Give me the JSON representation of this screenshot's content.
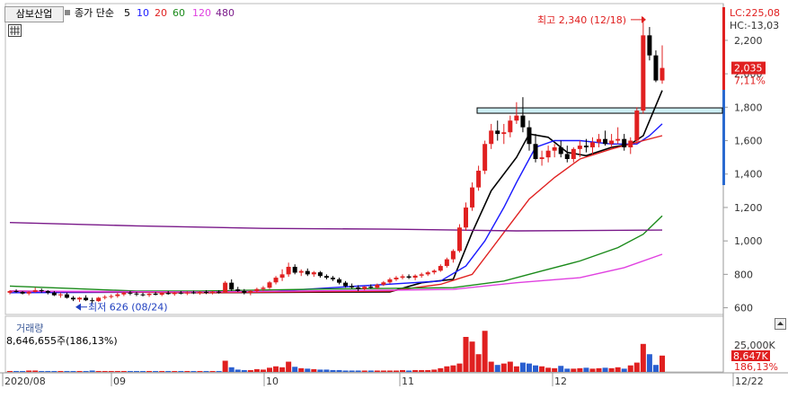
{
  "header": {
    "stock_name": "삼보산업",
    "ma_title": "종가 단순",
    "ma_periods": [
      {
        "label": "5",
        "color": "#000000"
      },
      {
        "label": "10",
        "color": "#1a1aff"
      },
      {
        "label": "20",
        "color": "#e02020"
      },
      {
        "label": "60",
        "color": "#1a8a1a"
      },
      {
        "label": "120",
        "color": "#e040e0"
      },
      {
        "label": "480",
        "color": "#7a1a8a"
      }
    ],
    "grid_icon": "table-grid-icon"
  },
  "price_axis": {
    "ticks": [
      "2,200",
      "2,000",
      "1,800",
      "1,600",
      "1,400",
      "1,200",
      "1,000",
      "800",
      "600"
    ],
    "lc_label": "LC:225,08",
    "hc_label": "HC:-13,03",
    "current_price": "2,035",
    "change_pct": "7,11%"
  },
  "annotations": {
    "high": "최고 2,340 (12/18)",
    "low": "최저 626 (08/24)"
  },
  "volume_pane": {
    "title": "거래량",
    "info": "8,646,655주(186,13%)",
    "axis_max": "25,000K",
    "current_volume": "8,647K",
    "volume_pct": "186,13%"
  },
  "date_axis": {
    "labels": [
      "2020/08",
      "09",
      "10",
      "11",
      "12",
      "12/22"
    ]
  },
  "colors": {
    "up": "#e02020",
    "down": "#000000",
    "vol_up": "#e02020",
    "vol_down": "#2a5fd0",
    "box_fill": "#cdeff5",
    "box_border": "#000000"
  },
  "chart_data": {
    "type": "candlestick",
    "y_range": [
      560,
      2420
    ],
    "candles": [
      [
        690,
        705,
        680,
        700
      ],
      [
        700,
        710,
        690,
        695
      ],
      [
        695,
        700,
        680,
        685
      ],
      [
        685,
        700,
        675,
        695
      ],
      [
        695,
        720,
        690,
        705
      ],
      [
        705,
        715,
        690,
        700
      ],
      [
        700,
        705,
        680,
        690
      ],
      [
        690,
        700,
        670,
        675
      ],
      [
        675,
        690,
        660,
        680
      ],
      [
        680,
        690,
        655,
        660
      ],
      [
        660,
        670,
        640,
        650
      ],
      [
        650,
        665,
        635,
        660
      ],
      [
        660,
        675,
        640,
        645
      ],
      [
        645,
        660,
        626,
        640
      ],
      [
        640,
        665,
        635,
        660
      ],
      [
        660,
        675,
        650,
        665
      ],
      [
        665,
        680,
        655,
        670
      ],
      [
        670,
        690,
        660,
        680
      ],
      [
        680,
        695,
        670,
        690
      ],
      [
        690,
        700,
        675,
        685
      ],
      [
        685,
        695,
        670,
        680
      ],
      [
        680,
        690,
        668,
        676
      ],
      [
        676,
        688,
        665,
        684
      ],
      [
        684,
        695,
        674,
        678
      ],
      [
        678,
        692,
        670,
        688
      ],
      [
        688,
        700,
        678,
        682
      ],
      [
        682,
        695,
        672,
        690
      ],
      [
        690,
        700,
        680,
        685
      ],
      [
        685,
        698,
        676,
        692
      ],
      [
        692,
        702,
        682,
        688
      ],
      [
        688,
        700,
        678,
        695
      ],
      [
        695,
        705,
        682,
        690
      ],
      [
        690,
        700,
        680,
        696
      ],
      [
        696,
        705,
        685,
        692
      ],
      [
        692,
        760,
        690,
        750
      ],
      [
        750,
        770,
        700,
        710
      ],
      [
        710,
        725,
        695,
        700
      ],
      [
        700,
        712,
        680,
        690
      ],
      [
        690,
        705,
        675,
        700
      ],
      [
        700,
        720,
        690,
        712
      ],
      [
        712,
        730,
        700,
        720
      ],
      [
        720,
        760,
        712,
        752
      ],
      [
        752,
        790,
        740,
        780
      ],
      [
        780,
        830,
        760,
        800
      ],
      [
        800,
        870,
        785,
        845
      ],
      [
        845,
        860,
        800,
        810
      ],
      [
        810,
        830,
        790,
        820
      ],
      [
        820,
        835,
        790,
        800
      ],
      [
        800,
        820,
        785,
        812
      ],
      [
        812,
        820,
        780,
        790
      ],
      [
        790,
        800,
        770,
        780
      ],
      [
        780,
        790,
        760,
        770
      ],
      [
        770,
        780,
        740,
        750
      ],
      [
        750,
        760,
        720,
        730
      ],
      [
        730,
        745,
        715,
        722
      ],
      [
        722,
        735,
        700,
        712
      ],
      [
        712,
        730,
        705,
        726
      ],
      [
        726,
        740,
        715,
        720
      ],
      [
        720,
        745,
        712,
        738
      ],
      [
        738,
        760,
        730,
        752
      ],
      [
        752,
        780,
        745,
        770
      ],
      [
        770,
        790,
        760,
        780
      ],
      [
        780,
        800,
        770,
        788
      ],
      [
        788,
        800,
        772,
        780
      ],
      [
        780,
        800,
        765,
        792
      ],
      [
        792,
        810,
        780,
        800
      ],
      [
        800,
        820,
        790,
        812
      ],
      [
        812,
        830,
        800,
        822
      ],
      [
        822,
        860,
        815,
        850
      ],
      [
        850,
        900,
        840,
        890
      ],
      [
        890,
        950,
        870,
        940
      ],
      [
        940,
        1100,
        930,
        1080
      ],
      [
        1080,
        1230,
        1060,
        1200
      ],
      [
        1200,
        1350,
        1180,
        1320
      ],
      [
        1320,
        1450,
        1300,
        1420
      ],
      [
        1420,
        1600,
        1400,
        1580
      ],
      [
        1580,
        1700,
        1550,
        1660
      ],
      [
        1660,
        1720,
        1600,
        1640
      ],
      [
        1640,
        1700,
        1580,
        1650
      ],
      [
        1650,
        1750,
        1620,
        1720
      ],
      [
        1720,
        1830,
        1700,
        1750
      ],
      [
        1750,
        1860,
        1650,
        1680
      ],
      [
        1680,
        1720,
        1540,
        1580
      ],
      [
        1580,
        1640,
        1470,
        1490
      ],
      [
        1490,
        1540,
        1450,
        1500
      ],
      [
        1500,
        1570,
        1470,
        1540
      ],
      [
        1540,
        1580,
        1500,
        1560
      ],
      [
        1560,
        1600,
        1500,
        1520
      ],
      [
        1520,
        1570,
        1470,
        1490
      ],
      [
        1490,
        1560,
        1470,
        1550
      ],
      [
        1550,
        1600,
        1500,
        1570
      ],
      [
        1570,
        1610,
        1530,
        1560
      ],
      [
        1560,
        1620,
        1520,
        1590
      ],
      [
        1590,
        1640,
        1560,
        1610
      ],
      [
        1610,
        1660,
        1570,
        1580
      ],
      [
        1580,
        1640,
        1560,
        1600
      ],
      [
        1600,
        1680,
        1580,
        1610
      ],
      [
        1610,
        1640,
        1540,
        1560
      ],
      [
        1560,
        1620,
        1520,
        1600
      ],
      [
        1600,
        1800,
        1580,
        1780
      ],
      [
        1780,
        2340,
        1760,
        2230
      ],
      [
        2230,
        2280,
        2080,
        2110
      ],
      [
        2110,
        2140,
        1950,
        1960
      ],
      [
        1960,
        2170,
        1940,
        2035
      ]
    ],
    "ma": [
      {
        "name": "5",
        "values": [
          [
            0,
            700
          ],
          [
            30,
            690
          ],
          [
            60,
            695
          ],
          [
            65,
            750
          ],
          [
            70,
            770
          ],
          [
            73,
            1050
          ],
          [
            76,
            1300
          ],
          [
            80,
            1500
          ],
          [
            82,
            1640
          ],
          [
            85,
            1620
          ],
          [
            88,
            1530
          ],
          [
            91,
            1510
          ],
          [
            95,
            1560
          ],
          [
            98,
            1580
          ],
          [
            100,
            1630
          ],
          [
            103,
            1900
          ]
        ]
      },
      {
        "name": "10",
        "values": [
          [
            0,
            690
          ],
          [
            40,
            695
          ],
          [
            68,
            760
          ],
          [
            72,
            850
          ],
          [
            75,
            1000
          ],
          [
            78,
            1200
          ],
          [
            80,
            1350
          ],
          [
            83,
            1560
          ],
          [
            86,
            1600
          ],
          [
            90,
            1600
          ],
          [
            95,
            1580
          ],
          [
            99,
            1580
          ],
          [
            101,
            1630
          ],
          [
            103,
            1700
          ]
        ]
      },
      {
        "name": "20",
        "values": [
          [
            0,
            700
          ],
          [
            30,
            690
          ],
          [
            60,
            700
          ],
          [
            68,
            740
          ],
          [
            73,
            800
          ],
          [
            76,
            950
          ],
          [
            78,
            1050
          ],
          [
            82,
            1250
          ],
          [
            86,
            1380
          ],
          [
            90,
            1490
          ],
          [
            95,
            1550
          ],
          [
            100,
            1600
          ],
          [
            103,
            1630
          ]
        ]
      },
      {
        "name": "60",
        "values": [
          [
            0,
            730
          ],
          [
            10,
            715
          ],
          [
            20,
            700
          ],
          [
            30,
            700
          ],
          [
            50,
            712
          ],
          [
            70,
            720
          ],
          [
            78,
            760
          ],
          [
            84,
            820
          ],
          [
            90,
            880
          ],
          [
            96,
            960
          ],
          [
            100,
            1040
          ],
          [
            103,
            1150
          ]
        ]
      },
      {
        "name": "120",
        "values": [
          [
            0,
            700
          ],
          [
            30,
            695
          ],
          [
            60,
            705
          ],
          [
            70,
            710
          ],
          [
            80,
            750
          ],
          [
            90,
            780
          ],
          [
            97,
            840
          ],
          [
            103,
            920
          ]
        ]
      },
      {
        "name": "480",
        "values": [
          [
            0,
            1110
          ],
          [
            20,
            1090
          ],
          [
            40,
            1075
          ],
          [
            60,
            1070
          ],
          [
            80,
            1060
          ],
          [
            103,
            1065
          ]
        ]
      }
    ],
    "volume_ratio": [
      0.02,
      0.02,
      0.02,
      0.03,
      0.03,
      0.02,
      0.02,
      0.02,
      0.02,
      0.02,
      0.02,
      0.02,
      0.02,
      0.03,
      0.02,
      0.02,
      0.02,
      0.02,
      0.02,
      0.02,
      0.02,
      0.02,
      0.02,
      0.02,
      0.02,
      0.02,
      0.02,
      0.02,
      0.02,
      0.02,
      0.02,
      0.02,
      0.02,
      0.02,
      0.24,
      0.1,
      0.05,
      0.04,
      0.04,
      0.06,
      0.05,
      0.09,
      0.12,
      0.1,
      0.22,
      0.11,
      0.08,
      0.07,
      0.06,
      0.05,
      0.05,
      0.04,
      0.04,
      0.03,
      0.03,
      0.03,
      0.03,
      0.03,
      0.03,
      0.03,
      0.03,
      0.03,
      0.04,
      0.03,
      0.04,
      0.04,
      0.04,
      0.05,
      0.08,
      0.12,
      0.14,
      0.18,
      0.75,
      0.65,
      0.38,
      0.88,
      0.22,
      0.15,
      0.18,
      0.22,
      0.12,
      0.2,
      0.18,
      0.14,
      0.12,
      0.09,
      0.08,
      0.13,
      0.07,
      0.07,
      0.08,
      0.09,
      0.07,
      0.08,
      0.09,
      0.08,
      0.1,
      0.07,
      0.14,
      0.2,
      0.6,
      0.38,
      0.15,
      0.35
    ]
  }
}
